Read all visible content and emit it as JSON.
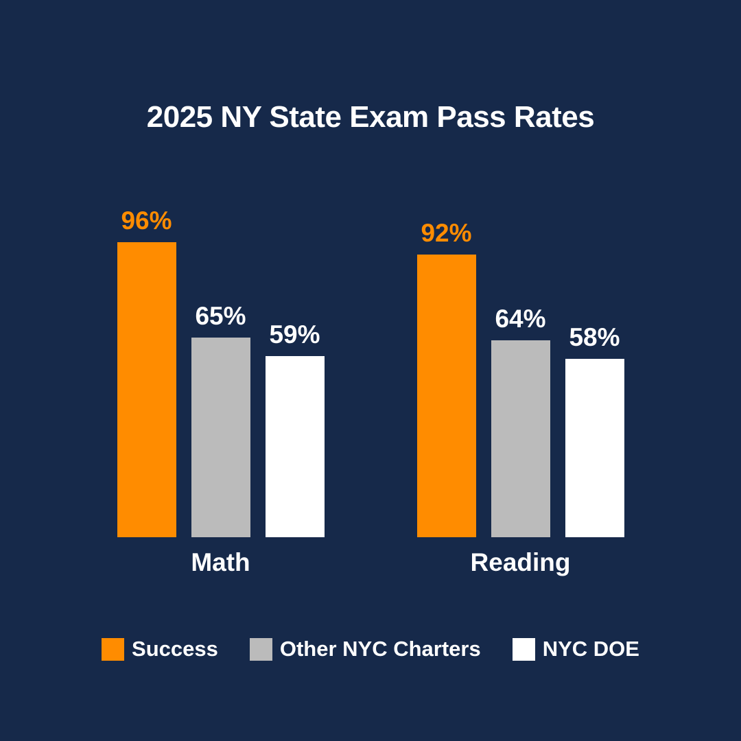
{
  "title": "2025 NY State Exam Pass Rates",
  "colors": {
    "background": "#16294A",
    "text_white": "#FFFFFF",
    "success_orange": "#FF8C00",
    "charters_gray": "#BBBBBB",
    "doe_white": "#FFFFFF"
  },
  "chart_data": {
    "type": "bar",
    "title": "2025 NY State Exam Pass Rates",
    "categories": [
      "Math",
      "Reading"
    ],
    "series": [
      {
        "name": "Success",
        "color": "#FF8C00",
        "label_color": "#FF8C00",
        "values": [
          96,
          92
        ]
      },
      {
        "name": "Other NYC Charters",
        "color": "#BBBBBB",
        "label_color": "#FFFFFF",
        "values": [
          65,
          64
        ]
      },
      {
        "name": "NYC DOE",
        "color": "#FFFFFF",
        "label_color": "#FFFFFF",
        "values": [
          59,
          58
        ]
      }
    ],
    "value_suffix": "%",
    "ylim": [
      0,
      100
    ],
    "grid": false,
    "axes_shown": false,
    "legend_position": "bottom"
  }
}
